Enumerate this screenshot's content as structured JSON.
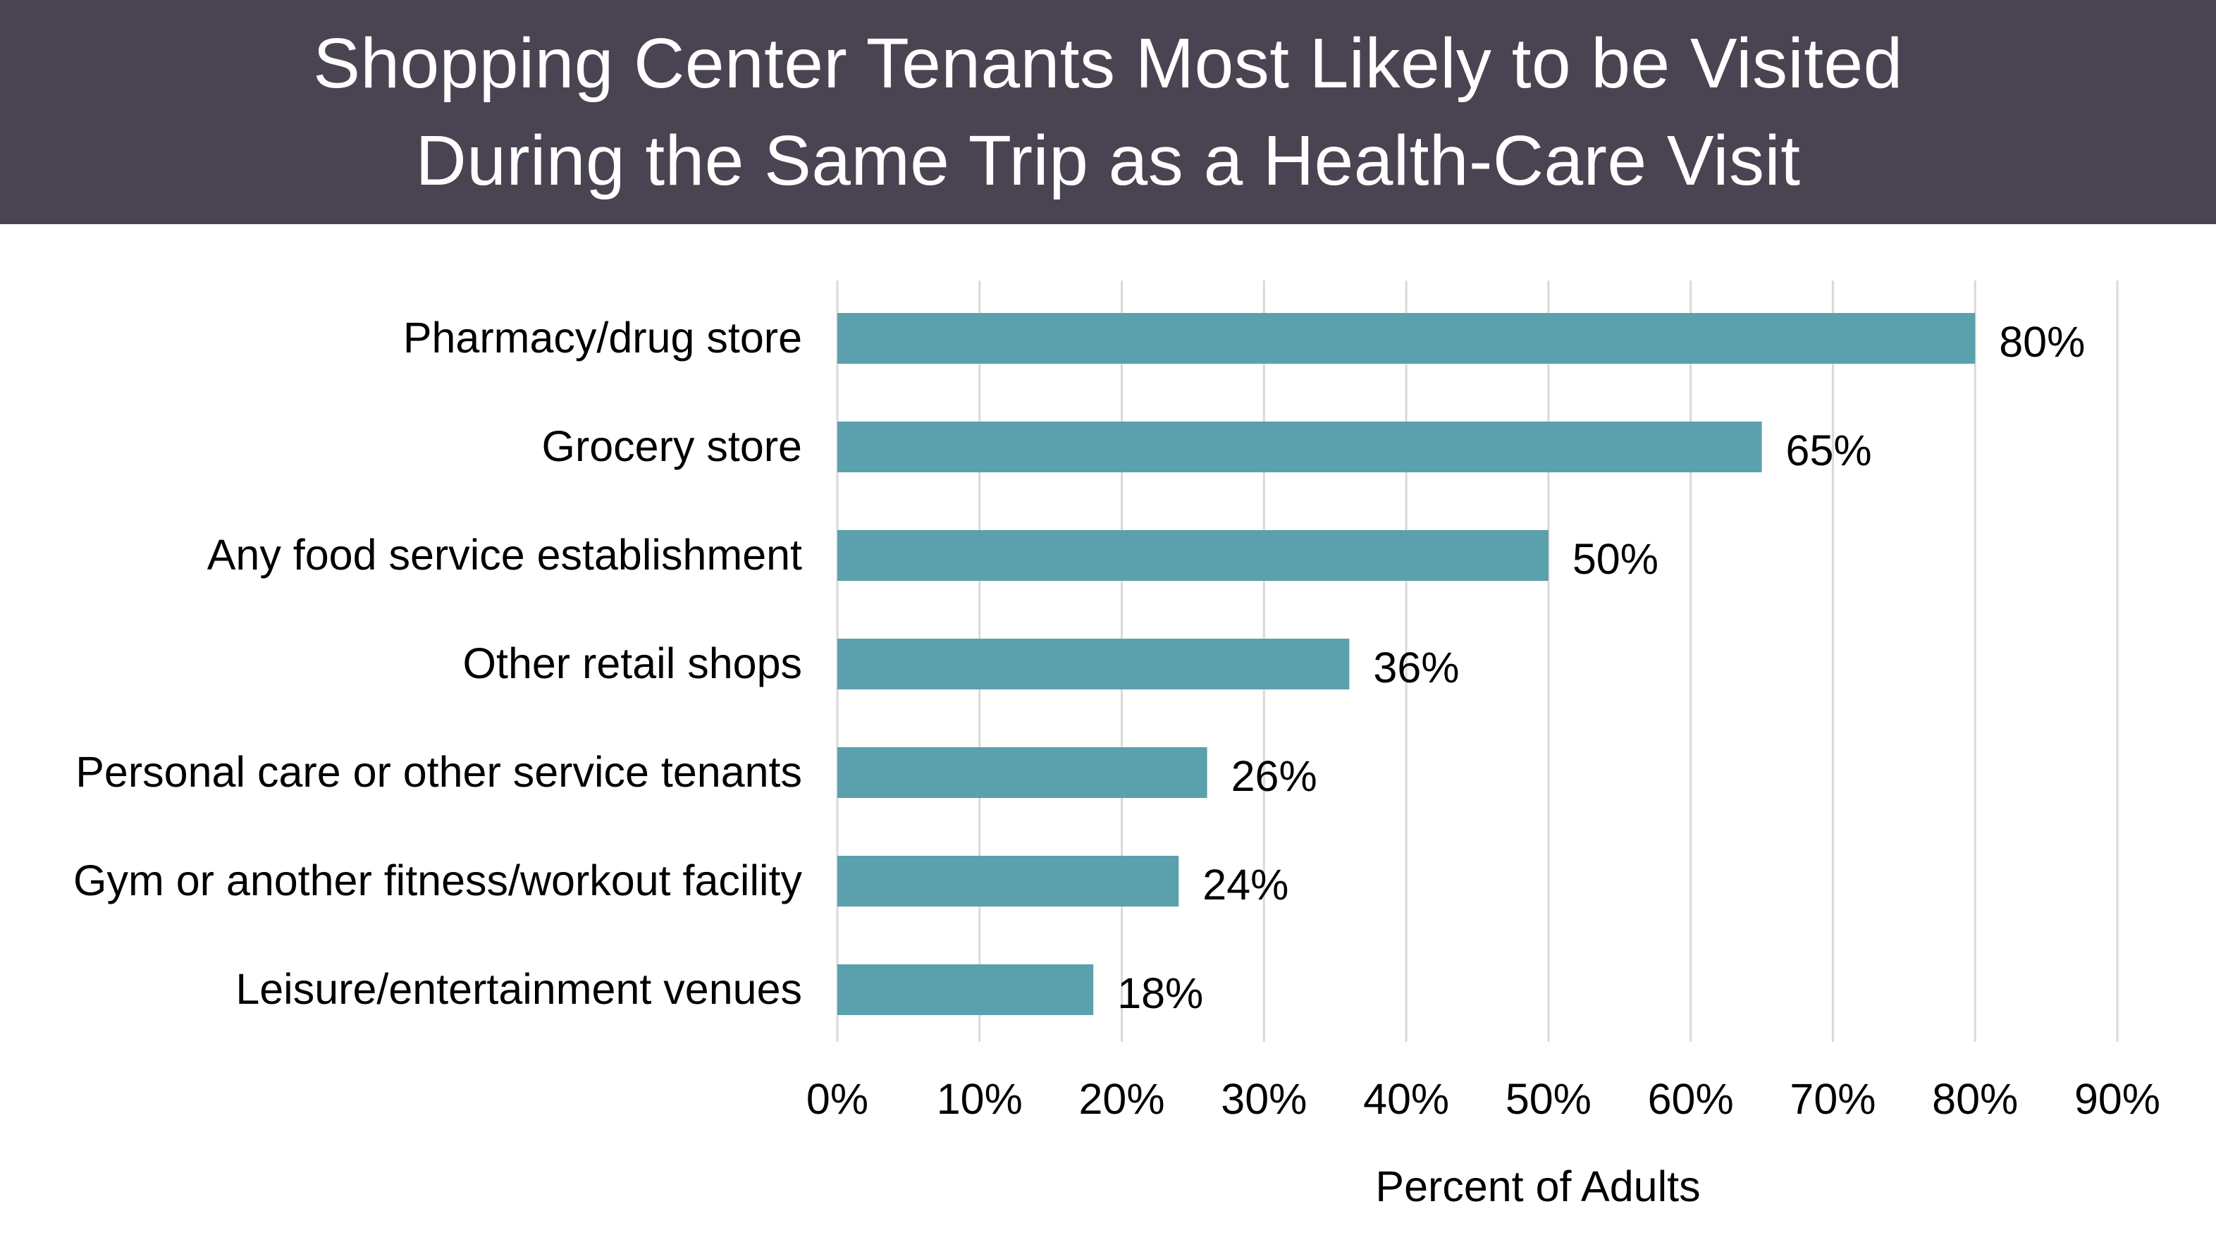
{
  "chart_data": {
    "type": "bar",
    "orientation": "horizontal",
    "title_lines": [
      "Shopping Center Tenants Most Likely to be Visited",
      "During the Same Trip as a Health-Care Visit"
    ],
    "categories": [
      "Pharmacy/drug store",
      "Grocery store",
      "Any food service establishment",
      "Other retail shops",
      "Personal care or other service tenants",
      "Gym or another fitness/workout facility",
      "Leisure/entertainment venues"
    ],
    "values": [
      80,
      65,
      50,
      36,
      26,
      24,
      18
    ],
    "value_labels": [
      "80%",
      "65%",
      "50%",
      "36%",
      "26%",
      "24%",
      "18%"
    ],
    "xlabel": "Percent of Adults",
    "ylabel": "",
    "xlim": [
      0,
      90
    ],
    "x_ticks": [
      0,
      10,
      20,
      30,
      40,
      50,
      60,
      70,
      80,
      90
    ],
    "x_tick_labels": [
      "0%",
      "10%",
      "20%",
      "30%",
      "40%",
      "50%",
      "60%",
      "70%",
      "80%",
      "90%"
    ],
    "grid": "vertical",
    "legend": "none",
    "colors": {
      "bar": "#5ba0ad",
      "grid": "#d9d9d9",
      "banner": "#4a4452",
      "text": "#000000"
    }
  }
}
